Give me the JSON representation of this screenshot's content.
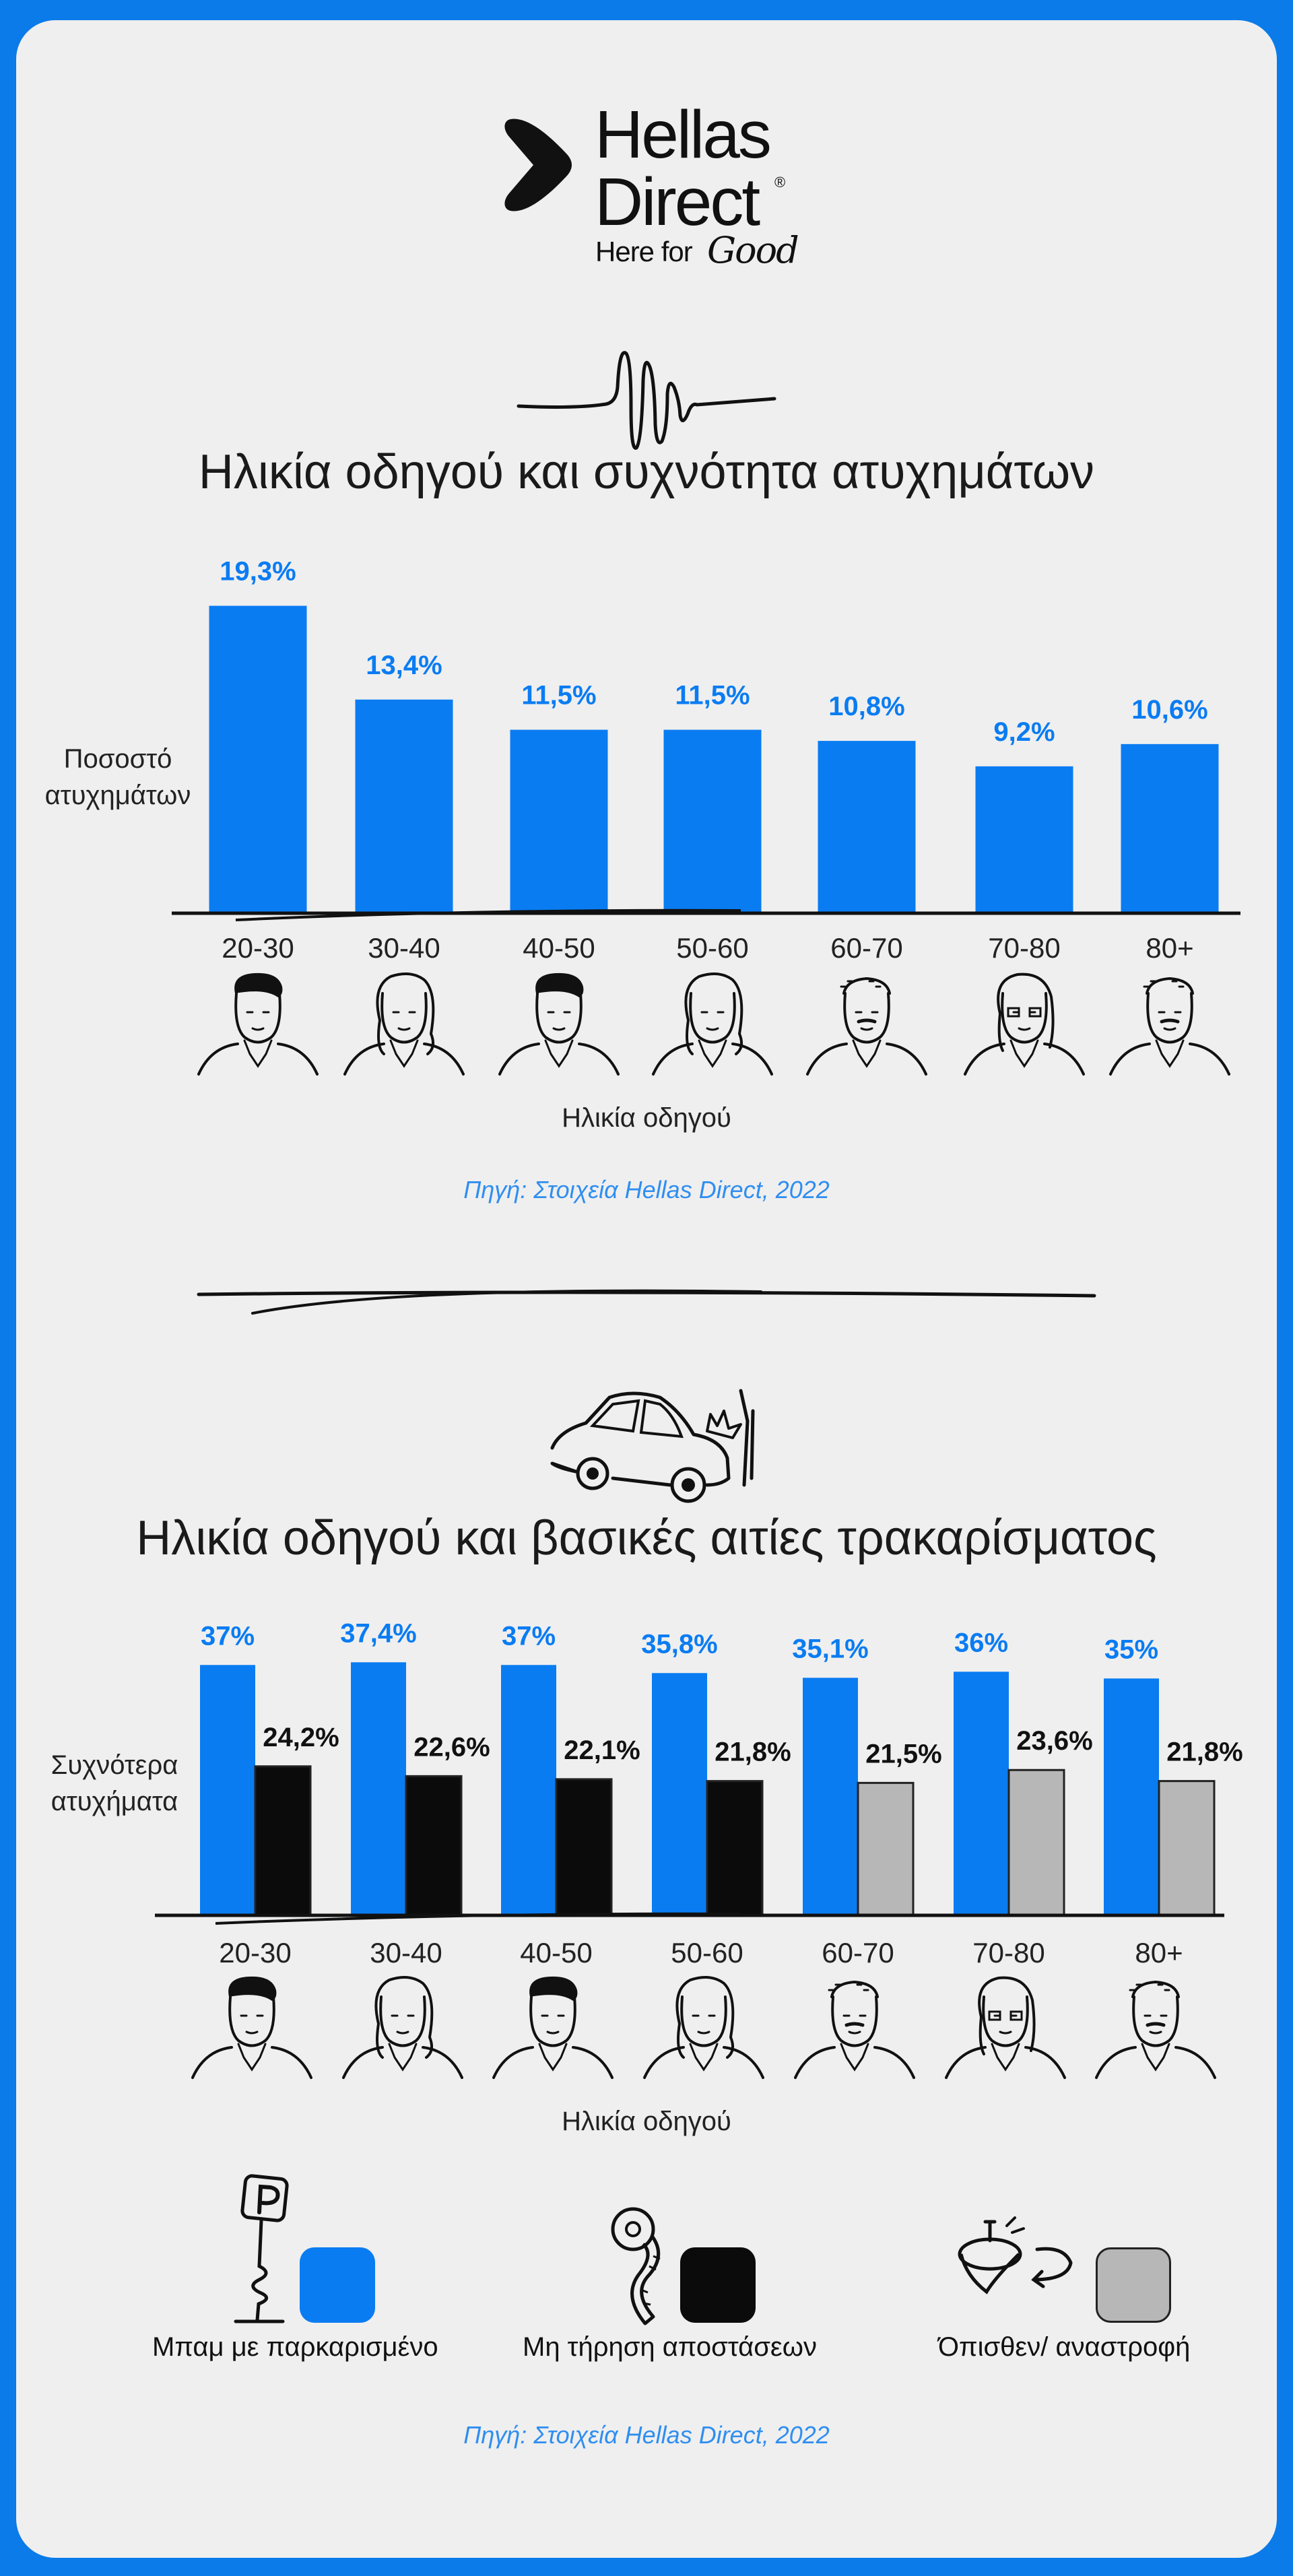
{
  "brand": {
    "name": "Hellas\nDirect",
    "reg_mark": "®",
    "tagline": "Here for",
    "tagline_script": "Good"
  },
  "colors": {
    "blue": "#0a7cf2",
    "black": "#0b0b0b",
    "gray": "#b7b7b7",
    "frame": "#0a7be8",
    "source_text": "#2f8ef0"
  },
  "icons": [
    "hellas-direct-logo-icon",
    "sound-wave-icon",
    "car-crash-icon",
    "parking-sign-icon",
    "measuring-tape-icon",
    "spinning-top-icon",
    "driver-face-icon"
  ],
  "chart_data": [
    {
      "type": "bar",
      "title": "Ηλικία οδηγού και συχνότητα ατυχημάτων",
      "xlabel": "Ηλικία οδηγού",
      "ylabel": "Ποσοστό ατυχημάτων",
      "categories": [
        "20-30",
        "30-40",
        "40-50",
        "50-60",
        "60-70",
        "70-80",
        "80+"
      ],
      "values": [
        19.3,
        13.4,
        11.5,
        11.5,
        10.8,
        9.2,
        10.6
      ],
      "value_labels": [
        "19,3%",
        "13,4%",
        "11,5%",
        "11,5%",
        "10,8%",
        "9,2%",
        "10,6%"
      ],
      "ylim": [
        0,
        20
      ],
      "grid": false,
      "source": "Πηγή: Στοιχεία Hellas Direct, 2022"
    },
    {
      "type": "bar",
      "title": "Ηλικία οδηγού και βασικές αιτίες τρακαρίσματος",
      "xlabel": "Ηλικία οδηγού",
      "ylabel": "Συχνότερα ατυχήματα",
      "categories": [
        "20-30",
        "30-40",
        "40-50",
        "50-60",
        "60-70",
        "70-80",
        "80+"
      ],
      "series": [
        {
          "name": "Μπαμ με παρκαρισμένο",
          "values": [
            37,
            37.4,
            37,
            35.8,
            35.1,
            36,
            35
          ],
          "labels": [
            "37%",
            "37,4%",
            "37%",
            "35,8%",
            "35,1%",
            "36%",
            "35%"
          ]
        },
        {
          "name": "Μη τήρηση αποστάσεων",
          "values": [
            24.2,
            22.6,
            22.1,
            21.8,
            null,
            null,
            null
          ],
          "labels": [
            "24,2%",
            "22,6%",
            "22,1%",
            "21,8%",
            "",
            "",
            ""
          ]
        },
        {
          "name": "Όπισθεν/ αναστροφή",
          "values": [
            null,
            null,
            null,
            null,
            21.5,
            23.6,
            21.8
          ],
          "labels": [
            "",
            "",
            "",
            "",
            "21,5%",
            "23,6%",
            "21,8%"
          ]
        }
      ],
      "ylim": [
        0,
        40
      ],
      "grid": false,
      "legend": "bottom",
      "source": "Πηγή: Στοιχεία Hellas Direct, 2022"
    }
  ]
}
